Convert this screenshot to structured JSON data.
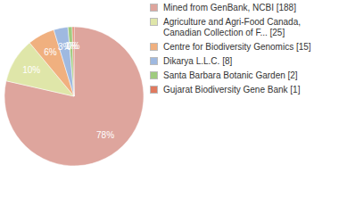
{
  "chart_data": {
    "type": "pie",
    "categories": [
      "Mined from GenBank, NCBI [188]",
      "Agriculture and Agri-Food Canada, Canadian Collection of F... [25]",
      "Centre for Biodiversity Genomics [15]",
      "Dikarya L.L.C. [8]",
      "Santa Barbara Botanic Garden [2]",
      "Gujarat Biodiversity Gene Bank [1]"
    ],
    "values": [
      78.4,
      10.4,
      6.3,
      3.3,
      1.0,
      0.4
    ],
    "value_labels": [
      "78%",
      "10%",
      "6%",
      "3%",
      "1%",
      "0%"
    ],
    "data_labels": true,
    "legend": "right",
    "colors": [
      "#dea59d",
      "#dfe6a9",
      "#f0b07f",
      "#9fb9e0",
      "#9fcb7f",
      "#e07a5f"
    ]
  }
}
